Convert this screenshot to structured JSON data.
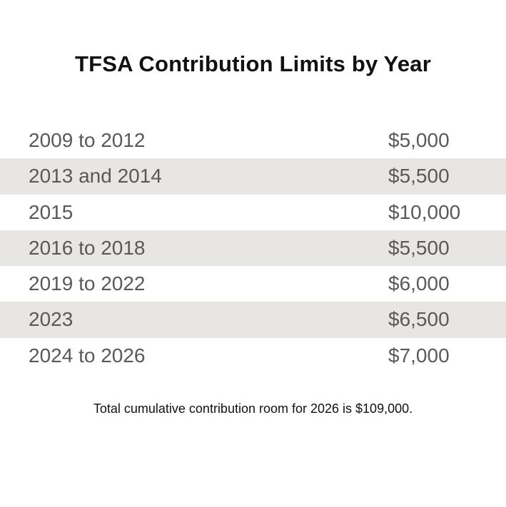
{
  "title": "TFSA Contribution Limits by Year",
  "colors": {
    "background": "#ffffff",
    "shaded_row": "#e8e6e5",
    "title_text": "#111111",
    "row_text": "#595959"
  },
  "rows": [
    {
      "years": "2009 to 2012",
      "limit": "$5,000"
    },
    {
      "years": "2013 and 2014",
      "limit": "$5,500"
    },
    {
      "years": "2015",
      "limit": "$10,000"
    },
    {
      "years": "2016 to 2018",
      "limit": "$5,500"
    },
    {
      "years": "2019 to 2022",
      "limit": "$6,000"
    },
    {
      "years": "2023",
      "limit": "$6,500"
    },
    {
      "years": "2024 to 2026",
      "limit": "$7,000"
    }
  ],
  "footnote": "Total cumulative contribution room for 2026 is $109,000."
}
